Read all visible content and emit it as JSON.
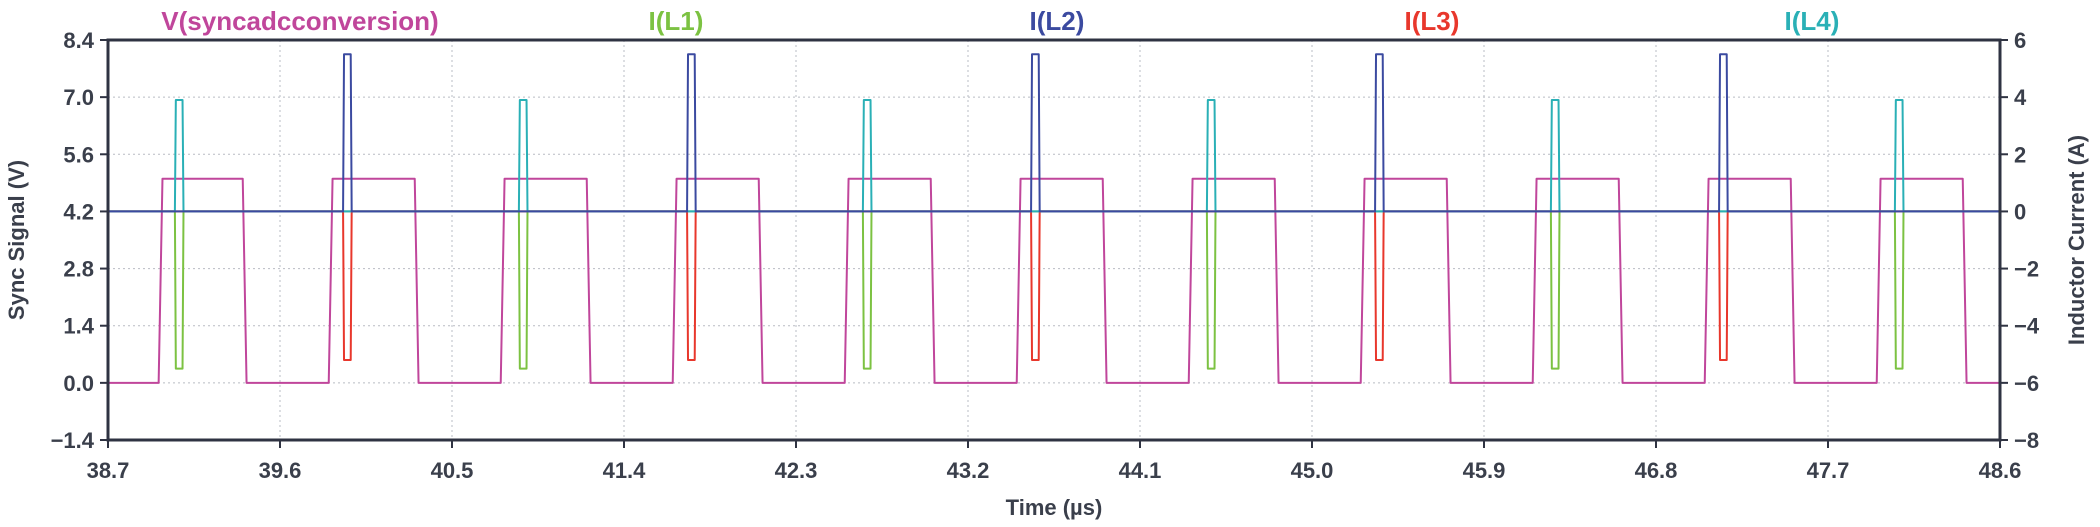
{
  "chart_data": {
    "type": "line",
    "xlabel": "Time (µs)",
    "ylabel": "Sync Signal (V)",
    "y2label": "Inductor Current (A)",
    "xlim": [
      38.7,
      48.6
    ],
    "ylim": [
      -1.4,
      8.4
    ],
    "y2lim": [
      -8,
      6
    ],
    "x_ticks": [
      "38.7",
      "39.6",
      "40.5",
      "41.4",
      "42.3",
      "43.2",
      "44.1",
      "45.0",
      "45.9",
      "46.8",
      "47.7",
      "48.6"
    ],
    "y_ticks": [
      "−1.4",
      "0.0",
      "1.4",
      "2.8",
      "4.2",
      "5.6",
      "7.0",
      "8.4"
    ],
    "y2_ticks": [
      "−8",
      "−6",
      "−4",
      "−2",
      "0",
      "2",
      "4",
      "6"
    ],
    "grid": true,
    "legend_position": "top",
    "series": [
      {
        "name": "V(syncadcconversion)",
        "axis": "left",
        "color": "#c0469b",
        "x": [
          38.7,
          38.965,
          38.985,
          39.405,
          39.425,
          39.855,
          39.875,
          40.305,
          40.325,
          40.755,
          40.775,
          41.205,
          41.225,
          41.655,
          41.675,
          42.105,
          42.125,
          42.555,
          42.575,
          43.005,
          43.025,
          43.455,
          43.475,
          43.905,
          43.925,
          44.355,
          44.375,
          44.805,
          44.825,
          45.255,
          45.275,
          45.705,
          45.725,
          46.155,
          46.175,
          46.605,
          46.625,
          47.055,
          47.075,
          47.505,
          47.525,
          47.955,
          47.975,
          48.405,
          48.425,
          48.6
        ],
        "y": [
          0.0,
          0.0,
          5.0,
          5.0,
          0.0,
          0.0,
          5.0,
          5.0,
          0.0,
          0.0,
          5.0,
          5.0,
          0.0,
          0.0,
          5.0,
          5.0,
          0.0,
          0.0,
          5.0,
          5.0,
          0.0,
          0.0,
          5.0,
          5.0,
          0.0,
          0.0,
          5.0,
          5.0,
          0.0,
          0.0,
          5.0,
          5.0,
          0.0,
          0.0,
          5.0,
          5.0,
          0.0,
          0.0,
          5.0,
          5.0,
          0.0,
          0.0,
          5.0,
          5.0,
          0.0,
          0.0
        ]
      },
      {
        "name": "I(L1)",
        "axis": "right",
        "color": "#7cc242",
        "x": [
          38.7,
          39.05,
          39.055,
          39.09,
          39.095,
          40.85,
          40.855,
          40.89,
          40.895,
          42.65,
          42.655,
          42.69,
          42.695,
          44.45,
          44.455,
          44.49,
          44.495,
          46.25,
          46.255,
          46.29,
          46.295,
          48.05,
          48.055,
          48.09,
          48.095,
          48.6
        ],
        "y": [
          0.0,
          0.0,
          -5.5,
          -5.5,
          0.0,
          0.0,
          -5.5,
          -5.5,
          0.0,
          0.0,
          -5.5,
          -5.5,
          0.0,
          0.0,
          -5.5,
          -5.5,
          0.0,
          0.0,
          -5.5,
          -5.5,
          0.0,
          0.0,
          -5.5,
          -5.5,
          0.0,
          0.0
        ]
      },
      {
        "name": "I(L2)",
        "axis": "right",
        "color": "#3b4aa0",
        "x": [
          38.7,
          39.93,
          39.935,
          39.97,
          39.975,
          41.73,
          41.735,
          41.77,
          41.775,
          43.53,
          43.535,
          43.57,
          43.575,
          45.33,
          45.335,
          45.37,
          45.375,
          47.13,
          47.135,
          47.17,
          47.175,
          48.6
        ],
        "y": [
          0.0,
          0.0,
          5.5,
          5.5,
          0.0,
          0.0,
          5.5,
          5.5,
          0.0,
          0.0,
          5.5,
          5.5,
          0.0,
          0.0,
          5.5,
          5.5,
          0.0,
          0.0,
          5.5,
          5.5,
          0.0,
          0.0
        ]
      },
      {
        "name": "I(L3)",
        "axis": "right",
        "color": "#e8372c",
        "x": [
          38.7,
          39.93,
          39.935,
          39.97,
          39.975,
          41.73,
          41.735,
          41.77,
          41.775,
          43.53,
          43.535,
          43.57,
          43.575,
          45.33,
          45.335,
          45.37,
          45.375,
          47.13,
          47.135,
          47.17,
          47.175,
          48.6
        ],
        "y": [
          0.0,
          0.0,
          -5.2,
          -5.2,
          0.0,
          0.0,
          -5.2,
          -5.2,
          0.0,
          0.0,
          -5.2,
          -5.2,
          0.0,
          0.0,
          -5.2,
          -5.2,
          0.0,
          0.0,
          -5.2,
          -5.2,
          0.0,
          0.0
        ]
      },
      {
        "name": "I(L4)",
        "axis": "right",
        "color": "#2ab0b6",
        "x": [
          38.7,
          39.05,
          39.055,
          39.09,
          39.095,
          40.85,
          40.855,
          40.89,
          40.895,
          42.65,
          42.655,
          42.69,
          42.695,
          44.45,
          44.455,
          44.49,
          44.495,
          46.25,
          46.255,
          46.29,
          46.295,
          48.05,
          48.055,
          48.09,
          48.095,
          48.6
        ],
        "y": [
          0.0,
          0.0,
          3.9,
          3.9,
          0.0,
          0.0,
          3.9,
          3.9,
          0.0,
          0.0,
          3.9,
          3.9,
          0.0,
          0.0,
          3.9,
          3.9,
          0.0,
          0.0,
          3.9,
          3.9,
          0.0,
          0.0,
          3.9,
          3.9,
          0.0,
          0.0
        ]
      }
    ]
  }
}
